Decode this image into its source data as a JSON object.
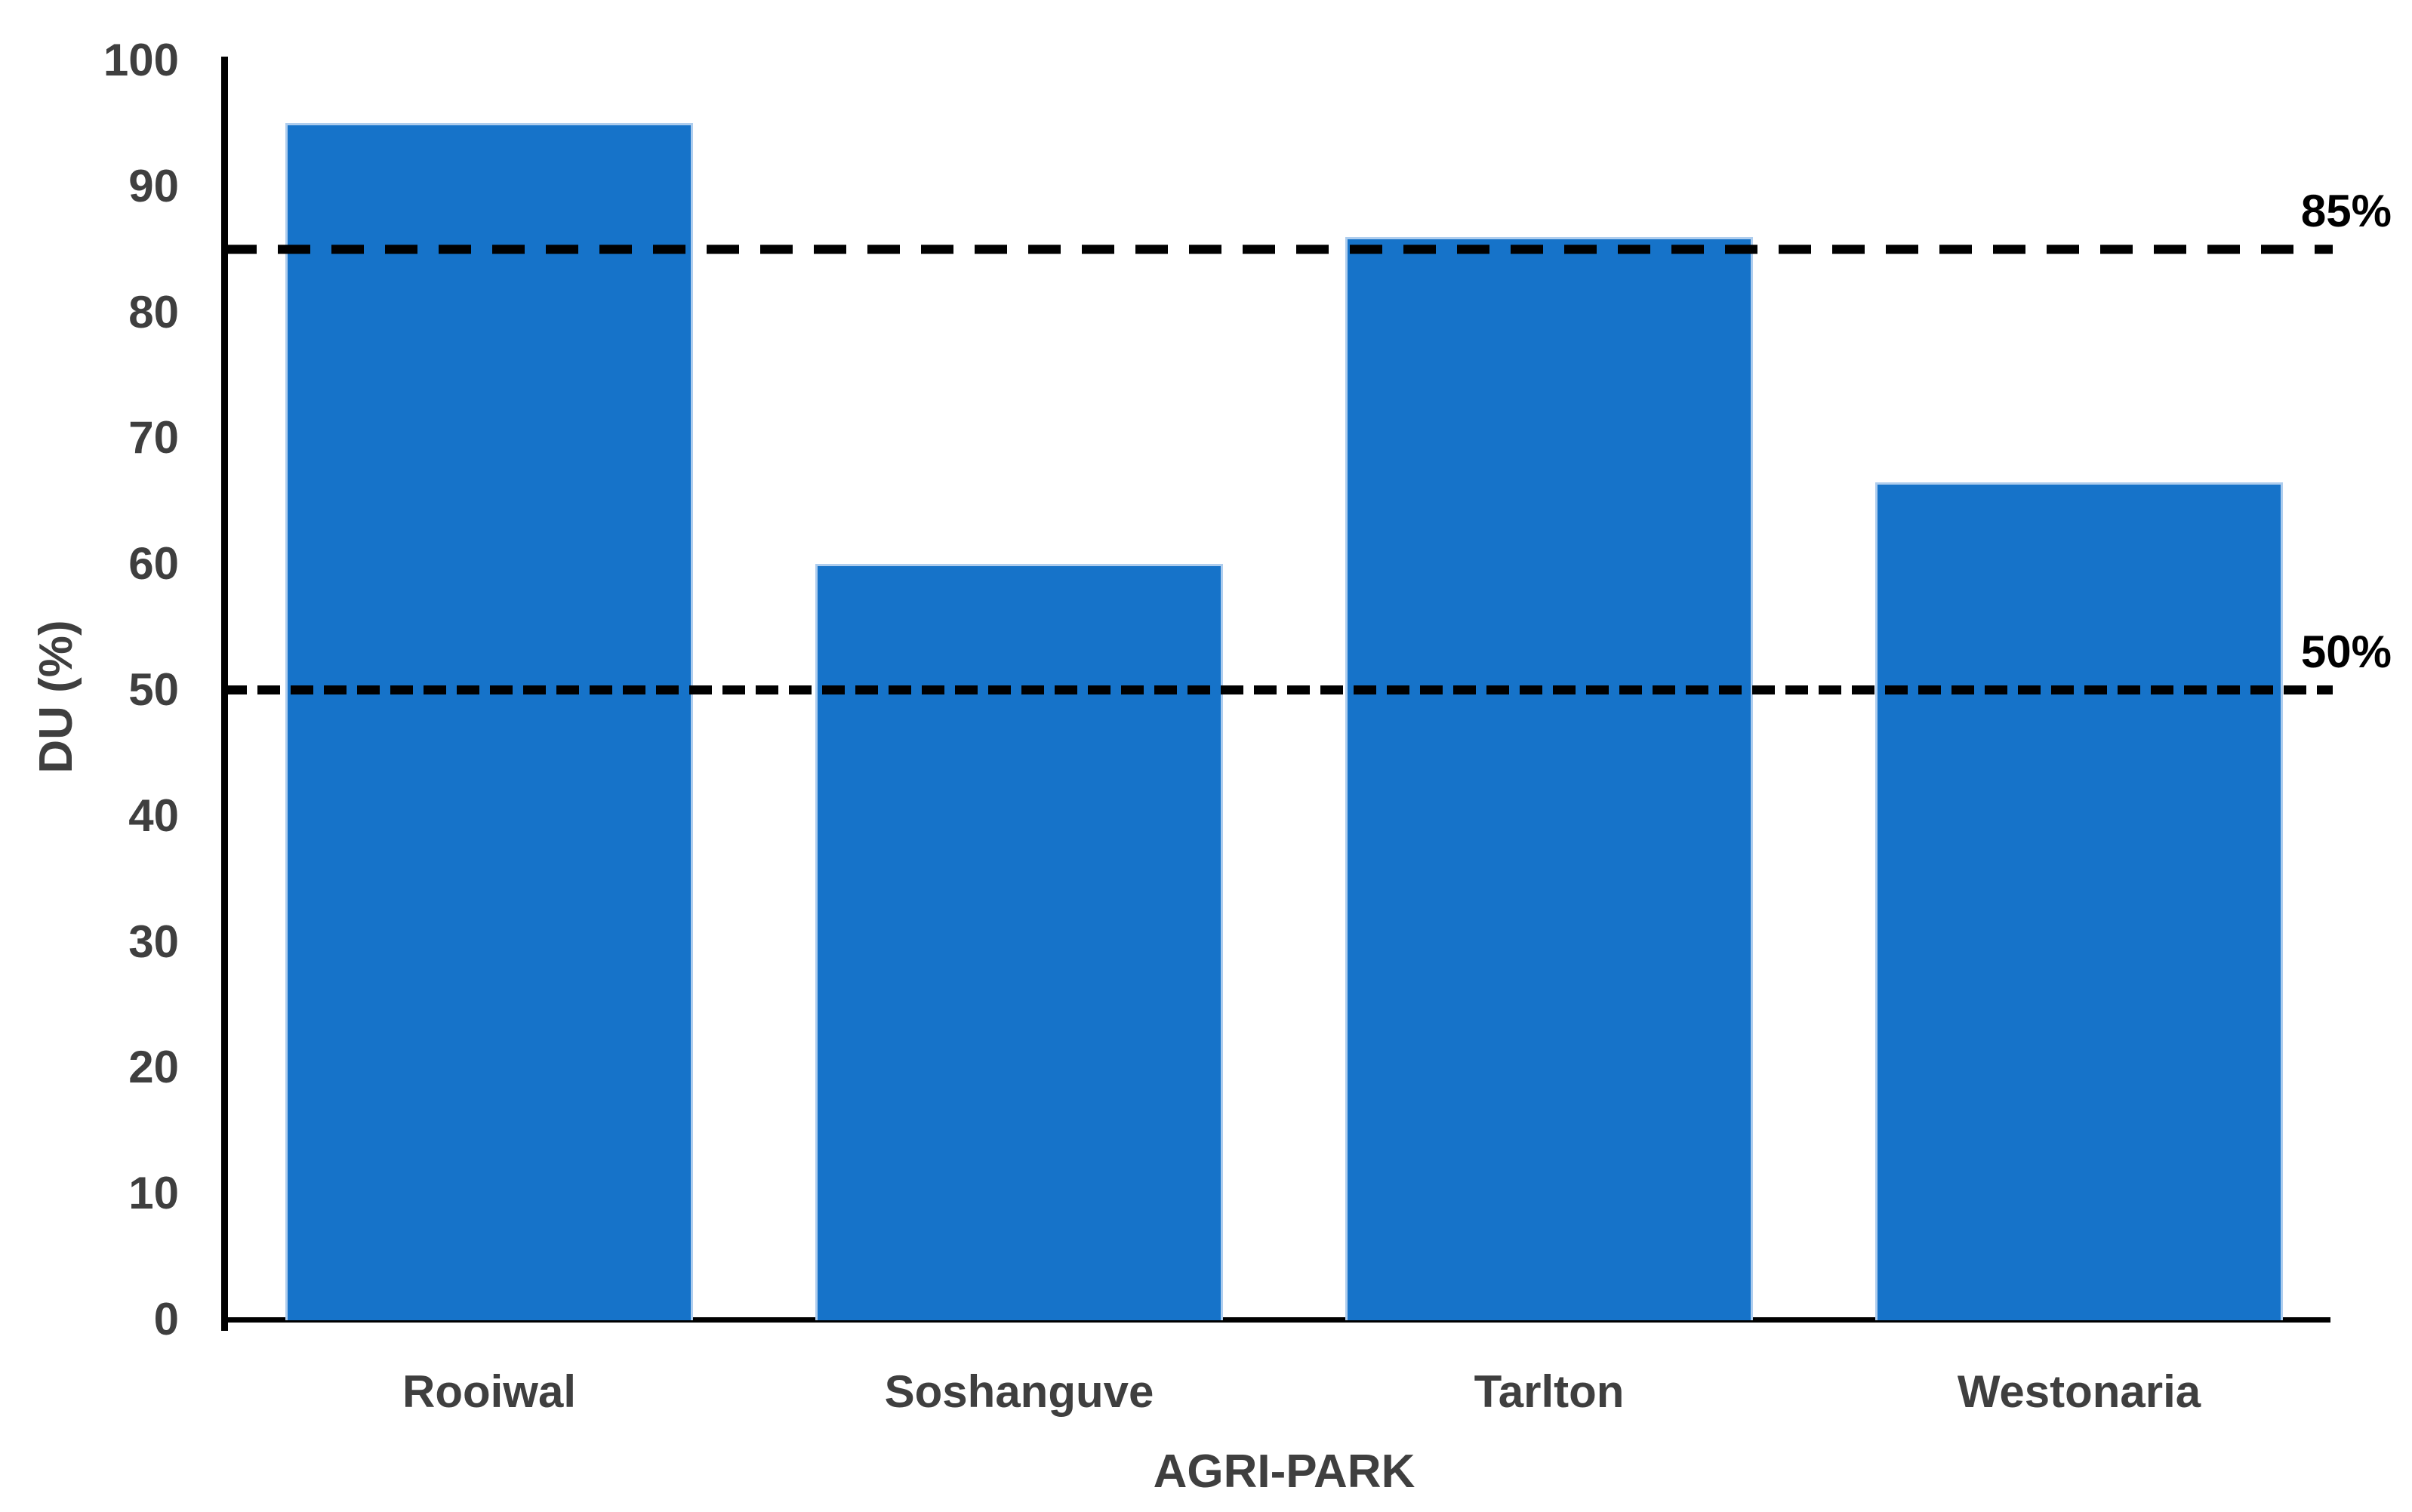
{
  "chart_data": {
    "type": "bar",
    "title": "",
    "categories": [
      "Rooiwal",
      "Soshanguve",
      "Tarlton",
      "Westonaria"
    ],
    "values": [
      95,
      60,
      86,
      66.5
    ],
    "xlabel": "AGRI-PARK",
    "ylabel": "DU (%)",
    "ylim": [
      0,
      100
    ],
    "yticks": [
      0,
      10,
      20,
      30,
      40,
      50,
      60,
      70,
      80,
      90,
      100
    ],
    "grid": false,
    "legend": false,
    "bar_color": "#1673c9",
    "bar_edge_color": "#aecdee",
    "axis_color": "#000000",
    "tick_label_color": "#3f3f3f",
    "reference_lines": [
      {
        "value": 85,
        "label": "85%",
        "dash_style": "long-dash",
        "color": "#000000"
      },
      {
        "value": 50,
        "label": "50%",
        "dash_style": "short-dash",
        "color": "#000000"
      }
    ]
  }
}
